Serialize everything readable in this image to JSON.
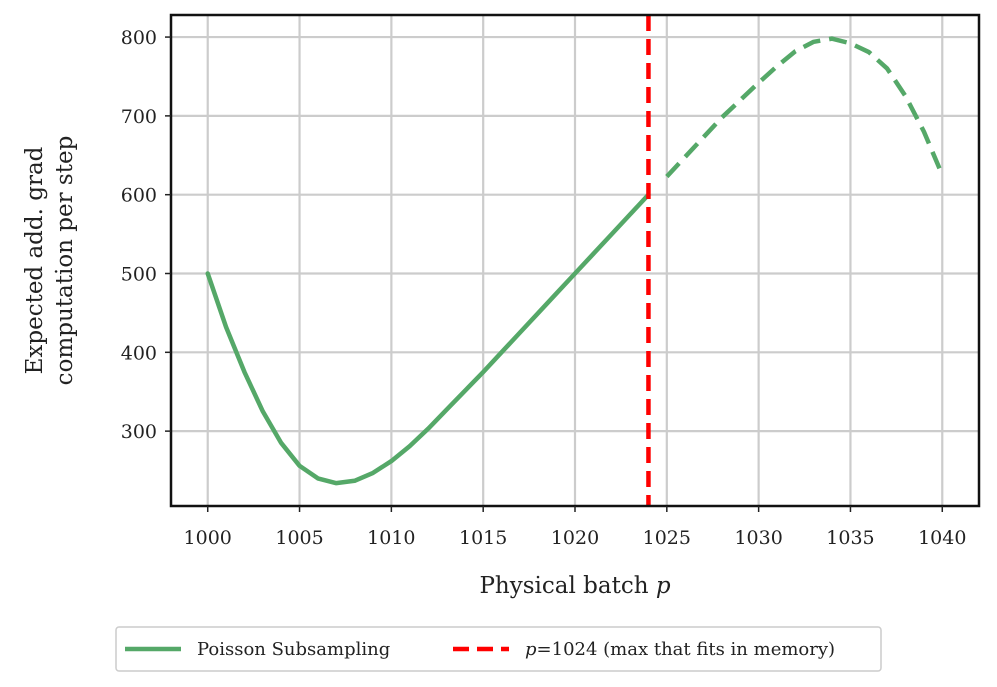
{
  "chart_data": {
    "type": "line",
    "title": "",
    "xlabel": "Physical batch",
    "xlabel_var": "p",
    "ylabel_lines": [
      "Expected add. grad",
      "computation per step"
    ],
    "xlim": [
      998,
      1042
    ],
    "ylim": [
      205,
      828
    ],
    "xticks": [
      1000,
      1005,
      1010,
      1015,
      1020,
      1025,
      1030,
      1035,
      1040
    ],
    "yticks": [
      300,
      400,
      500,
      600,
      700,
      800
    ],
    "grid": true,
    "legend_placement": "bottom-center, below plot",
    "series": [
      {
        "name": "Poisson Subsampling",
        "color": "#55a868",
        "style": "solid",
        "x": [
          1000,
          1001,
          1002,
          1003,
          1004,
          1005,
          1006,
          1007,
          1008,
          1009,
          1010,
          1011,
          1012,
          1013,
          1014,
          1015,
          1016,
          1017,
          1018,
          1019,
          1020,
          1021,
          1022,
          1023,
          1024
        ],
        "y": [
          500,
          432,
          375,
          325,
          285,
          256,
          240,
          234,
          237,
          247,
          262,
          281,
          303,
          327,
          351,
          375,
          400,
          425,
          450,
          475,
          500,
          525,
          550,
          575,
          600
        ]
      },
      {
        "name": "",
        "color": "#55a868",
        "style": "dashed",
        "x": [
          1025,
          1026,
          1027,
          1028,
          1029,
          1030,
          1031,
          1032,
          1033,
          1034,
          1035,
          1036,
          1037,
          1038,
          1039,
          1040
        ],
        "y": [
          623,
          648,
          673,
          698,
          720,
          742,
          763,
          782,
          794,
          798,
          792,
          781,
          760,
          725,
          680,
          625
        ]
      }
    ],
    "vline": {
      "x": 1024,
      "color": "#ff0000",
      "style": "dashed",
      "legend_var": "p",
      "legend_rest": "=1024 (max that fits in memory)"
    }
  }
}
